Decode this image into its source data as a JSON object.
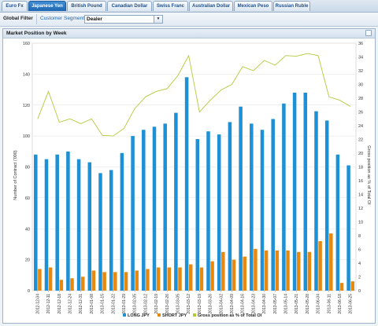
{
  "tabs": [
    {
      "label": "Euro Fx",
      "active": false
    },
    {
      "label": "Japanese Yen",
      "active": true
    },
    {
      "label": "British Pound",
      "active": false
    },
    {
      "label": "Canadian Dollar",
      "active": false
    },
    {
      "label": "Swiss Franc",
      "active": false
    },
    {
      "label": "Australian Dollar",
      "active": false
    },
    {
      "label": "Mexican Peso",
      "active": false
    },
    {
      "label": "Russian Ruble",
      "active": false
    }
  ],
  "filter": {
    "title": "Global Filter",
    "label": "Customer Segment",
    "selected": "Dealer"
  },
  "panel": {
    "title": "Market Position by Week"
  },
  "chart_data": {
    "type": "bar",
    "ylabel": "Number of Contract ('000)",
    "y2label": "Gross position as % of Total OI",
    "ylim": [
      0,
      160
    ],
    "y2lim": [
      0,
      36
    ],
    "yticks": [
      0,
      20,
      40,
      60,
      80,
      100,
      120,
      140,
      160
    ],
    "y2ticks": [
      0,
      2,
      4,
      6,
      8,
      10,
      12,
      14,
      16,
      18,
      20,
      22,
      24,
      26,
      28,
      30,
      32,
      34,
      36
    ],
    "categories": [
      "2012-12-04",
      "2012-12-11",
      "2012-12-18",
      "2012-12-24",
      "2012-12-31",
      "2013-01-08",
      "2013-01-15",
      "2013-01-22",
      "2013-01-29",
      "2013-02-05",
      "2013-02-12",
      "2013-02-19",
      "2013-02-26",
      "2013-03-05",
      "2013-03-12",
      "2013-03-19",
      "2013-03-26",
      "2013-04-02",
      "2013-04-09",
      "2013-04-16",
      "2013-04-23",
      "2013-04-30",
      "2013-05-07",
      "2013-05-14",
      "2013-05-21",
      "2013-05-28",
      "2013-06-04",
      "2013-06-11",
      "2013-06-18",
      "2013-06-25"
    ],
    "series": [
      {
        "name": "LONG JPY",
        "kind": "bar",
        "color": "#1e90d6",
        "values": [
          88,
          85,
          88,
          90,
          85,
          83,
          76,
          78,
          89,
          100,
          104,
          106,
          108,
          115,
          138,
          98,
          103,
          101,
          109,
          119,
          108,
          104,
          111,
          121,
          128,
          128,
          116,
          110,
          88,
          81
        ]
      },
      {
        "name": "SHORT JPY",
        "kind": "bar",
        "color": "#e8890f",
        "values": [
          14,
          15,
          7,
          8,
          9,
          13,
          12,
          12,
          12,
          13,
          14,
          15,
          15,
          15,
          17,
          15,
          19,
          25,
          20,
          22,
          27,
          26,
          26,
          26,
          25,
          25,
          32,
          37,
          5,
          6
        ]
      },
      {
        "name": "Gross position as % of Total OI",
        "kind": "line",
        "axis": "right",
        "color": "#b5c93a",
        "values": [
          25,
          29,
          24.5,
          25,
          24.3,
          25,
          22.6,
          22.5,
          23.6,
          26.5,
          28.2,
          29,
          29.4,
          31.3,
          34.2,
          26,
          27.7,
          29.2,
          30,
          32.6,
          32,
          33.5,
          32.8,
          34.2,
          34.1,
          34.5,
          34.2,
          28.2,
          27.7,
          26.8
        ]
      }
    ]
  }
}
